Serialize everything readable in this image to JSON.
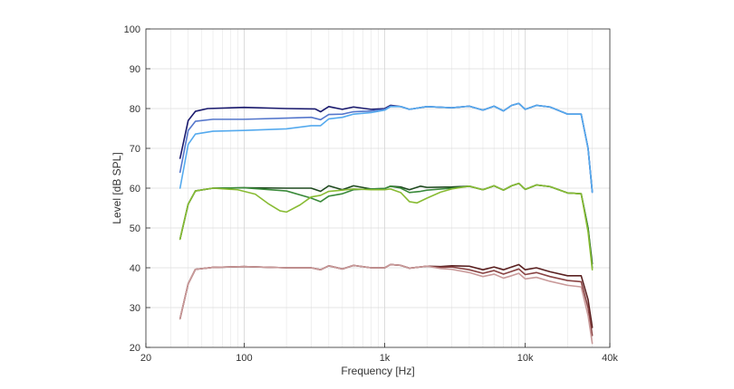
{
  "chart_data": {
    "type": "line",
    "title": "",
    "xlabel": "Frequency [Hz]",
    "ylabel": "Level [dB SPL]",
    "xscale": "log",
    "xlim": [
      20,
      40000
    ],
    "ylim": [
      20,
      100
    ],
    "grid": true,
    "legend": "none",
    "x_tick_labels": [
      "20",
      "100",
      "1k",
      "10k",
      "40k"
    ],
    "x_tick_values": [
      20,
      100,
      1000,
      10000,
      40000
    ],
    "y_tick_labels": [
      "20",
      "30",
      "40",
      "50",
      "60",
      "70",
      "80",
      "90",
      "100"
    ],
    "y_tick_values": [
      20,
      30,
      40,
      50,
      60,
      70,
      80,
      90,
      100
    ],
    "series": [
      {
        "color": "#1a1a6e",
        "points": [
          [
            35,
            67.5
          ],
          [
            40,
            77
          ],
          [
            45,
            79.3
          ],
          [
            55,
            80
          ],
          [
            100,
            80.3
          ],
          [
            200,
            80
          ],
          [
            320,
            79.9
          ],
          [
            350,
            79.2
          ],
          [
            400,
            80.5
          ],
          [
            500,
            79.8
          ],
          [
            600,
            80.4
          ],
          [
            800,
            79.8
          ],
          [
            1000,
            80
          ],
          [
            1100,
            80.8
          ],
          [
            1300,
            80.5
          ],
          [
            1500,
            79.8
          ],
          [
            2000,
            80.5
          ],
          [
            3000,
            80.2
          ],
          [
            4000,
            80.6
          ],
          [
            5000,
            79.6
          ],
          [
            6000,
            80.6
          ],
          [
            7000,
            79.4
          ],
          [
            8000,
            80.8
          ],
          [
            9000,
            81.3
          ],
          [
            10000,
            79.8
          ],
          [
            12000,
            80.8
          ],
          [
            15000,
            80.4
          ],
          [
            20000,
            78.6
          ],
          [
            25000,
            78.6
          ],
          [
            28000,
            70
          ],
          [
            30000,
            59
          ]
        ]
      },
      {
        "color": "#5577cc",
        "points": [
          [
            35,
            64
          ],
          [
            40,
            74.5
          ],
          [
            45,
            76.8
          ],
          [
            60,
            77.3
          ],
          [
            100,
            77.3
          ],
          [
            200,
            77.6
          ],
          [
            300,
            77.8
          ],
          [
            350,
            77.2
          ],
          [
            400,
            78.5
          ],
          [
            500,
            78.6
          ],
          [
            600,
            79.2
          ],
          [
            800,
            79.4
          ],
          [
            1000,
            79.8
          ],
          [
            1100,
            80.6
          ],
          [
            1300,
            80.5
          ],
          [
            1500,
            79.8
          ],
          [
            2000,
            80.5
          ],
          [
            3000,
            80.2
          ],
          [
            4000,
            80.6
          ],
          [
            5000,
            79.6
          ],
          [
            6000,
            80.6
          ],
          [
            7000,
            79.4
          ],
          [
            8000,
            80.8
          ],
          [
            9000,
            81.3
          ],
          [
            10000,
            79.8
          ],
          [
            12000,
            80.8
          ],
          [
            15000,
            80.4
          ],
          [
            20000,
            78.6
          ],
          [
            25000,
            78.6
          ],
          [
            28000,
            70
          ],
          [
            30000,
            59
          ]
        ]
      },
      {
        "color": "#55aaee",
        "points": [
          [
            35,
            60
          ],
          [
            40,
            71
          ],
          [
            45,
            73.6
          ],
          [
            60,
            74.3
          ],
          [
            100,
            74.5
          ],
          [
            200,
            74.9
          ],
          [
            300,
            75.7
          ],
          [
            350,
            75.7
          ],
          [
            400,
            77.4
          ],
          [
            500,
            77.8
          ],
          [
            600,
            78.6
          ],
          [
            800,
            79
          ],
          [
            1000,
            79.6
          ],
          [
            1100,
            80.5
          ],
          [
            1300,
            80.5
          ],
          [
            1500,
            79.8
          ],
          [
            2000,
            80.5
          ],
          [
            3000,
            80.2
          ],
          [
            4000,
            80.6
          ],
          [
            5000,
            79.6
          ],
          [
            6000,
            80.6
          ],
          [
            7000,
            79.4
          ],
          [
            8000,
            80.8
          ],
          [
            9000,
            81.3
          ],
          [
            10000,
            79.8
          ],
          [
            12000,
            80.8
          ],
          [
            15000,
            80.4
          ],
          [
            20000,
            78.6
          ],
          [
            25000,
            78.6
          ],
          [
            28000,
            70
          ],
          [
            30000,
            59
          ]
        ]
      },
      {
        "color": "#1f4a1f",
        "points": [
          [
            35,
            47.2
          ],
          [
            40,
            56
          ],
          [
            45,
            59.3
          ],
          [
            60,
            60
          ],
          [
            100,
            60.1
          ],
          [
            200,
            60
          ],
          [
            300,
            60
          ],
          [
            350,
            59.2
          ],
          [
            400,
            60.6
          ],
          [
            500,
            59.6
          ],
          [
            600,
            60.6
          ],
          [
            800,
            59.8
          ],
          [
            1000,
            59.9
          ],
          [
            1100,
            60.5
          ],
          [
            1300,
            60.3
          ],
          [
            1500,
            59.6
          ],
          [
            1800,
            60.5
          ],
          [
            2000,
            60.2
          ],
          [
            3000,
            60.3
          ],
          [
            4000,
            60.5
          ],
          [
            5000,
            59.6
          ],
          [
            6000,
            60.6
          ],
          [
            7000,
            59.5
          ],
          [
            8000,
            60.6
          ],
          [
            9000,
            61.2
          ],
          [
            10000,
            59.7
          ],
          [
            12000,
            60.8
          ],
          [
            15000,
            60.4
          ],
          [
            20000,
            58.8
          ],
          [
            25000,
            58.6
          ],
          [
            28000,
            50
          ],
          [
            30000,
            41
          ]
        ]
      },
      {
        "color": "#3a8a3a",
        "points": [
          [
            35,
            47.2
          ],
          [
            40,
            56
          ],
          [
            45,
            59.3
          ],
          [
            60,
            60
          ],
          [
            100,
            60.1
          ],
          [
            200,
            59.3
          ],
          [
            300,
            57.5
          ],
          [
            350,
            56.6
          ],
          [
            400,
            58
          ],
          [
            500,
            58.6
          ],
          [
            600,
            59.6
          ],
          [
            800,
            59.8
          ],
          [
            1000,
            59.9
          ],
          [
            1100,
            60.5
          ],
          [
            1300,
            60
          ],
          [
            1500,
            58.9
          ],
          [
            1800,
            59.2
          ],
          [
            2000,
            59.5
          ],
          [
            3000,
            60
          ],
          [
            4000,
            60.5
          ],
          [
            5000,
            59.6
          ],
          [
            6000,
            60.6
          ],
          [
            7000,
            59.5
          ],
          [
            8000,
            60.6
          ],
          [
            9000,
            61.2
          ],
          [
            10000,
            59.7
          ],
          [
            12000,
            60.8
          ],
          [
            15000,
            60.4
          ],
          [
            20000,
            58.8
          ],
          [
            25000,
            58.6
          ],
          [
            28000,
            50
          ],
          [
            30000,
            40
          ]
        ]
      },
      {
        "color": "#88bb33",
        "points": [
          [
            35,
            47.2
          ],
          [
            40,
            56
          ],
          [
            45,
            59.3
          ],
          [
            60,
            60
          ],
          [
            90,
            59.6
          ],
          [
            120,
            58.5
          ],
          [
            150,
            56
          ],
          [
            180,
            54.3
          ],
          [
            200,
            54
          ],
          [
            250,
            55.8
          ],
          [
            300,
            57.8
          ],
          [
            350,
            58.2
          ],
          [
            400,
            59.2
          ],
          [
            500,
            59.5
          ],
          [
            600,
            59.8
          ],
          [
            800,
            59.6
          ],
          [
            1000,
            59.6
          ],
          [
            1100,
            59.8
          ],
          [
            1300,
            58.9
          ],
          [
            1500,
            56.6
          ],
          [
            1700,
            56.3
          ],
          [
            2000,
            57.5
          ],
          [
            2500,
            59
          ],
          [
            3000,
            59.8
          ],
          [
            4000,
            60.5
          ],
          [
            5000,
            59.6
          ],
          [
            6000,
            60.6
          ],
          [
            7000,
            59.5
          ],
          [
            8000,
            60.6
          ],
          [
            9000,
            61.2
          ],
          [
            10000,
            59.7
          ],
          [
            12000,
            60.8
          ],
          [
            15000,
            60.4
          ],
          [
            20000,
            58.8
          ],
          [
            25000,
            58.6
          ],
          [
            28000,
            49
          ],
          [
            30000,
            39.5
          ]
        ]
      },
      {
        "color": "#5a2020",
        "points": [
          [
            35,
            27.2
          ],
          [
            40,
            36
          ],
          [
            45,
            39.6
          ],
          [
            60,
            40.1
          ],
          [
            100,
            40.3
          ],
          [
            200,
            40
          ],
          [
            300,
            40
          ],
          [
            350,
            39.5
          ],
          [
            400,
            40.5
          ],
          [
            500,
            39.7
          ],
          [
            600,
            40.6
          ],
          [
            800,
            40
          ],
          [
            1000,
            40
          ],
          [
            1100,
            40.8
          ],
          [
            1300,
            40.6
          ],
          [
            1500,
            39.9
          ],
          [
            2000,
            40.4
          ],
          [
            2500,
            40.3
          ],
          [
            3000,
            40.5
          ],
          [
            4000,
            40.4
          ],
          [
            5000,
            39.5
          ],
          [
            6000,
            40.2
          ],
          [
            7000,
            39.5
          ],
          [
            8000,
            40.2
          ],
          [
            9000,
            40.8
          ],
          [
            10000,
            39.5
          ],
          [
            12000,
            40
          ],
          [
            15000,
            39
          ],
          [
            20000,
            38
          ],
          [
            25000,
            38
          ],
          [
            28000,
            32
          ],
          [
            30000,
            25
          ]
        ]
      },
      {
        "color": "#8a4444",
        "points": [
          [
            35,
            27.2
          ],
          [
            40,
            36
          ],
          [
            45,
            39.6
          ],
          [
            60,
            40.1
          ],
          [
            100,
            40.3
          ],
          [
            200,
            40
          ],
          [
            300,
            40
          ],
          [
            350,
            39.5
          ],
          [
            400,
            40.5
          ],
          [
            500,
            39.7
          ],
          [
            600,
            40.6
          ],
          [
            800,
            40
          ],
          [
            1000,
            40
          ],
          [
            1100,
            40.8
          ],
          [
            1300,
            40.6
          ],
          [
            1500,
            39.9
          ],
          [
            2000,
            40.4
          ],
          [
            2500,
            40.1
          ],
          [
            3000,
            40.2
          ],
          [
            4000,
            39.5
          ],
          [
            5000,
            38.6
          ],
          [
            6000,
            39.3
          ],
          [
            7000,
            38.4
          ],
          [
            8000,
            39.1
          ],
          [
            9000,
            39.7
          ],
          [
            10000,
            38.3
          ],
          [
            12000,
            38.8
          ],
          [
            15000,
            37.8
          ],
          [
            20000,
            36.8
          ],
          [
            25000,
            36.5
          ],
          [
            28000,
            30
          ],
          [
            30000,
            23
          ]
        ]
      },
      {
        "color": "#c99a9a",
        "points": [
          [
            35,
            27.2
          ],
          [
            40,
            36
          ],
          [
            45,
            39.6
          ],
          [
            60,
            40.1
          ],
          [
            100,
            40.3
          ],
          [
            200,
            40
          ],
          [
            300,
            40
          ],
          [
            350,
            39.5
          ],
          [
            400,
            40.5
          ],
          [
            500,
            39.7
          ],
          [
            600,
            40.6
          ],
          [
            800,
            40
          ],
          [
            1000,
            40
          ],
          [
            1100,
            40.8
          ],
          [
            1300,
            40.6
          ],
          [
            1500,
            39.9
          ],
          [
            2000,
            40.4
          ],
          [
            2500,
            39.8
          ],
          [
            3000,
            39.6
          ],
          [
            4000,
            38.8
          ],
          [
            5000,
            37.8
          ],
          [
            6000,
            38.4
          ],
          [
            7000,
            37.4
          ],
          [
            8000,
            38
          ],
          [
            9000,
            38.6
          ],
          [
            10000,
            37.2
          ],
          [
            12000,
            37.6
          ],
          [
            15000,
            36.6
          ],
          [
            20000,
            35.6
          ],
          [
            25000,
            35.2
          ],
          [
            28000,
            28
          ],
          [
            30000,
            21
          ]
        ]
      }
    ]
  }
}
